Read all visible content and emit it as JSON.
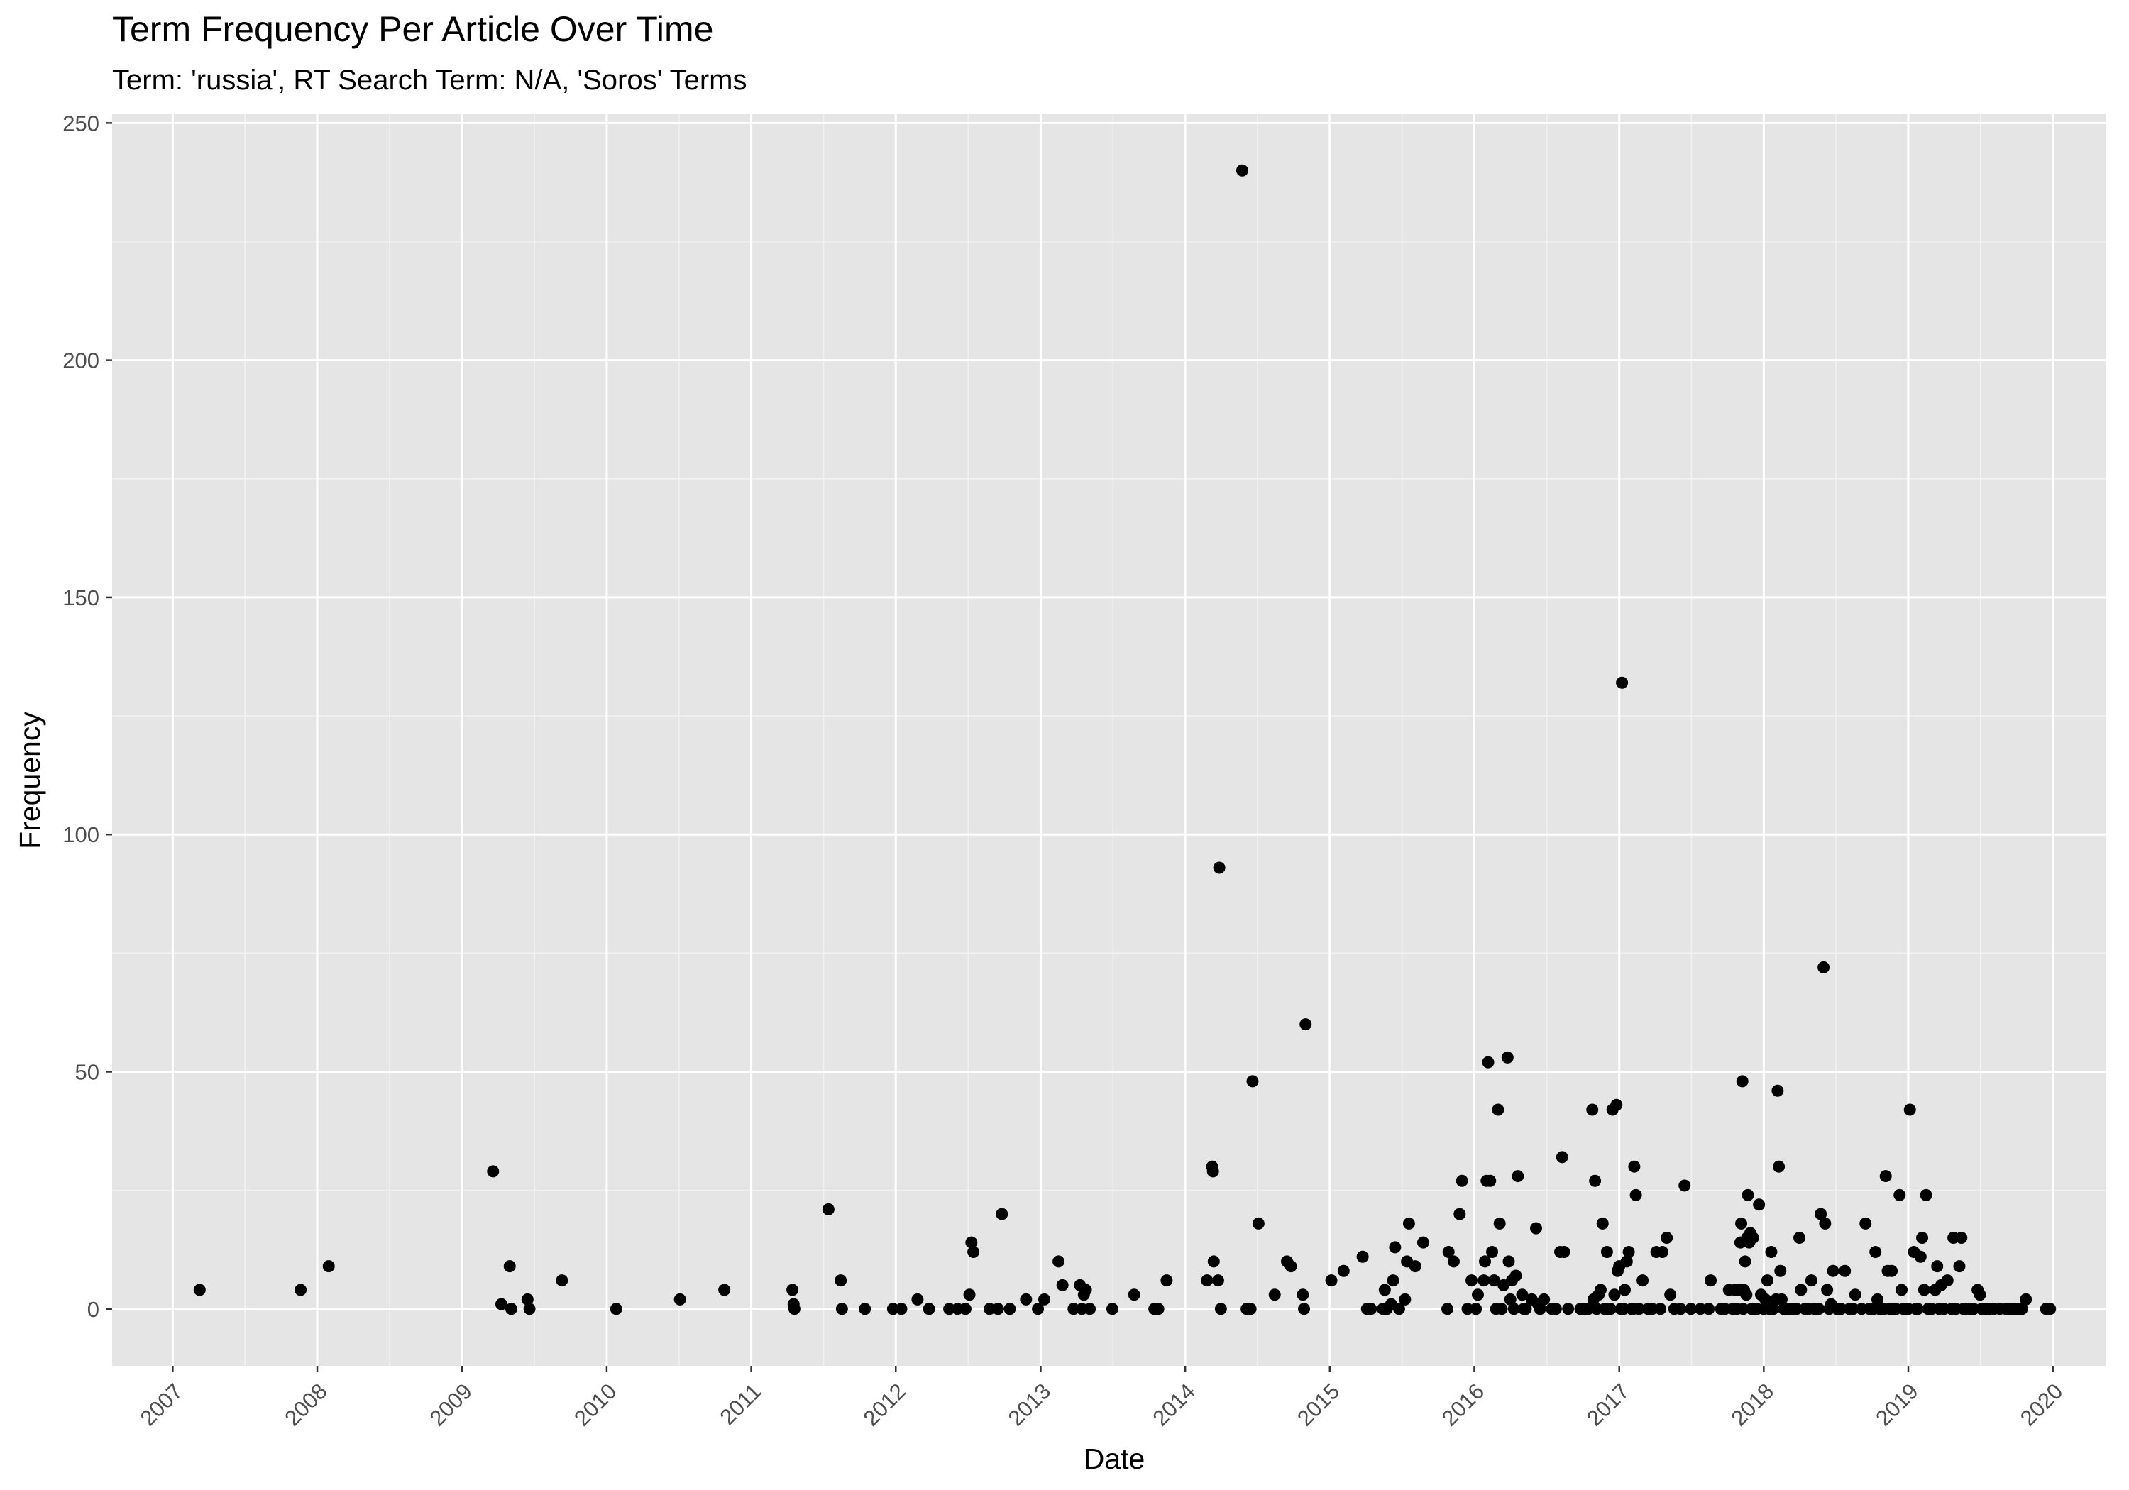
{
  "chart_data": {
    "type": "scatter",
    "title": "Term Frequency Per Article Over Time",
    "subtitle": "Term: 'russia', RT Search Term: N/A, 'Soros' Terms",
    "xlabel": "Date",
    "ylabel": "Frequency",
    "x_is_date": true,
    "xlim": [
      "2006-08-01",
      "2020-05-15"
    ],
    "ylim": [
      -12,
      252
    ],
    "x_ticks": [
      "2007",
      "2008",
      "2009",
      "2010",
      "2011",
      "2012",
      "2013",
      "2014",
      "2015",
      "2016",
      "2017",
      "2018",
      "2019",
      "2020"
    ],
    "y_ticks": [
      0,
      50,
      100,
      150,
      200,
      250
    ],
    "grid": true,
    "legend": "none",
    "colors": {
      "panel": "#e5e5e5",
      "grid_major": "#ffffff",
      "grid_minor": "#f2f2f2",
      "point": "#000000",
      "tick_text": "#4d4d4d"
    },
    "points": [
      [
        "2007-03-10",
        4
      ],
      [
        "2007-11-20",
        4
      ],
      [
        "2008-01-30",
        9
      ],
      [
        "2009-03-20",
        29
      ],
      [
        "2009-04-10",
        1
      ],
      [
        "2009-05-01",
        9
      ],
      [
        "2009-05-05",
        0
      ],
      [
        "2009-06-15",
        2
      ],
      [
        "2009-06-20",
        0
      ],
      [
        "2009-09-10",
        6
      ],
      [
        "2010-01-25",
        0
      ],
      [
        "2010-07-05",
        2
      ],
      [
        "2010-10-25",
        4
      ],
      [
        "2011-04-15",
        4
      ],
      [
        "2011-04-18",
        1
      ],
      [
        "2011-04-20",
        0
      ],
      [
        "2011-07-15",
        21
      ],
      [
        "2011-08-15",
        6
      ],
      [
        "2011-08-18",
        0
      ],
      [
        "2011-10-15",
        0
      ],
      [
        "2011-12-25",
        0
      ],
      [
        "2012-01-15",
        0
      ],
      [
        "2012-02-25",
        2
      ],
      [
        "2012-03-25",
        0
      ],
      [
        "2012-05-15",
        0
      ],
      [
        "2012-06-05",
        0
      ],
      [
        "2012-06-25",
        0
      ],
      [
        "2012-07-05",
        3
      ],
      [
        "2012-07-10",
        14
      ],
      [
        "2012-07-15",
        12
      ],
      [
        "2012-08-25",
        0
      ],
      [
        "2012-09-15",
        0
      ],
      [
        "2012-09-25",
        20
      ],
      [
        "2012-10-15",
        0
      ],
      [
        "2012-11-25",
        2
      ],
      [
        "2012-12-25",
        0
      ],
      [
        "2013-01-10",
        2
      ],
      [
        "2013-02-15",
        10
      ],
      [
        "2013-02-25",
        5
      ],
      [
        "2013-03-25",
        0
      ],
      [
        "2013-04-10",
        5
      ],
      [
        "2013-04-15",
        0
      ],
      [
        "2013-04-20",
        3
      ],
      [
        "2013-04-25",
        4
      ],
      [
        "2013-05-05",
        0
      ],
      [
        "2013-07-01",
        0
      ],
      [
        "2013-08-25",
        3
      ],
      [
        "2013-10-15",
        0
      ],
      [
        "2013-10-25",
        0
      ],
      [
        "2013-11-15",
        6
      ],
      [
        "2014-02-25",
        6
      ],
      [
        "2014-03-10",
        30
      ],
      [
        "2014-03-12",
        29
      ],
      [
        "2014-03-14",
        10
      ],
      [
        "2014-03-25",
        6
      ],
      [
        "2014-03-28",
        93
      ],
      [
        "2014-04-01",
        0
      ],
      [
        "2014-05-25",
        240
      ],
      [
        "2014-06-05",
        0
      ],
      [
        "2014-06-15",
        0
      ],
      [
        "2014-06-20",
        48
      ],
      [
        "2014-07-05",
        18
      ],
      [
        "2014-08-15",
        3
      ],
      [
        "2014-09-15",
        10
      ],
      [
        "2014-09-25",
        9
      ],
      [
        "2014-10-25",
        3
      ],
      [
        "2014-10-28",
        0
      ],
      [
        "2014-11-01",
        60
      ],
      [
        "2015-01-05",
        6
      ],
      [
        "2015-02-05",
        8
      ],
      [
        "2015-03-25",
        11
      ],
      [
        "2015-04-05",
        0
      ],
      [
        "2015-04-15",
        0
      ],
      [
        "2015-05-15",
        0
      ],
      [
        "2015-05-20",
        4
      ],
      [
        "2015-05-25",
        0
      ],
      [
        "2015-06-05",
        1
      ],
      [
        "2015-06-10",
        6
      ],
      [
        "2015-06-15",
        13
      ],
      [
        "2015-06-25",
        0
      ],
      [
        "2015-07-10",
        2
      ],
      [
        "2015-07-15",
        10
      ],
      [
        "2015-07-20",
        18
      ],
      [
        "2015-08-05",
        9
      ],
      [
        "2015-08-25",
        14
      ],
      [
        "2015-10-25",
        0
      ],
      [
        "2015-10-28",
        12
      ],
      [
        "2015-11-10",
        10
      ],
      [
        "2015-11-25",
        20
      ],
      [
        "2015-12-01",
        27
      ],
      [
        "2015-12-15",
        0
      ],
      [
        "2015-12-25",
        6
      ],
      [
        "2016-01-05",
        0
      ],
      [
        "2016-01-10",
        3
      ],
      [
        "2016-01-25",
        6
      ],
      [
        "2016-01-28",
        10
      ],
      [
        "2016-02-01",
        27
      ],
      [
        "2016-02-05",
        52
      ],
      [
        "2016-02-10",
        27
      ],
      [
        "2016-02-15",
        12
      ],
      [
        "2016-02-20",
        6
      ],
      [
        "2016-02-25",
        0
      ],
      [
        "2016-03-01",
        42
      ],
      [
        "2016-03-05",
        18
      ],
      [
        "2016-03-10",
        0
      ],
      [
        "2016-03-15",
        5
      ],
      [
        "2016-03-25",
        53
      ],
      [
        "2016-03-28",
        10
      ],
      [
        "2016-04-01",
        2
      ],
      [
        "2016-04-05",
        6
      ],
      [
        "2016-04-10",
        0
      ],
      [
        "2016-04-15",
        7
      ],
      [
        "2016-04-20",
        28
      ],
      [
        "2016-05-01",
        3
      ],
      [
        "2016-05-05",
        0
      ],
      [
        "2016-05-10",
        0
      ],
      [
        "2016-05-25",
        2
      ],
      [
        "2016-06-05",
        17
      ],
      [
        "2016-06-10",
        1
      ],
      [
        "2016-06-15",
        0
      ],
      [
        "2016-06-25",
        2
      ],
      [
        "2016-07-15",
        0
      ],
      [
        "2016-07-25",
        0
      ],
      [
        "2016-08-05",
        12
      ],
      [
        "2016-08-10",
        32
      ],
      [
        "2016-08-15",
        12
      ],
      [
        "2016-08-25",
        0
      ],
      [
        "2016-09-25",
        0
      ],
      [
        "2016-10-05",
        0
      ],
      [
        "2016-10-15",
        0
      ],
      [
        "2016-10-25",
        42
      ],
      [
        "2016-10-28",
        2
      ],
      [
        "2016-11-01",
        27
      ],
      [
        "2016-11-05",
        0
      ],
      [
        "2016-11-10",
        3
      ],
      [
        "2016-11-15",
        4
      ],
      [
        "2016-11-20",
        18
      ],
      [
        "2016-11-25",
        0
      ],
      [
        "2016-12-01",
        12
      ],
      [
        "2016-12-05",
        0
      ],
      [
        "2016-12-10",
        0
      ],
      [
        "2016-12-15",
        42
      ],
      [
        "2016-12-20",
        3
      ],
      [
        "2016-12-25",
        43
      ],
      [
        "2016-12-28",
        8
      ],
      [
        "2017-01-01",
        9
      ],
      [
        "2017-01-05",
        0
      ],
      [
        "2017-01-08",
        132
      ],
      [
        "2017-01-12",
        0
      ],
      [
        "2017-01-15",
        4
      ],
      [
        "2017-01-20",
        10
      ],
      [
        "2017-01-25",
        12
      ],
      [
        "2017-02-01",
        0
      ],
      [
        "2017-02-05",
        0
      ],
      [
        "2017-02-08",
        30
      ],
      [
        "2017-02-12",
        24
      ],
      [
        "2017-02-20",
        0
      ],
      [
        "2017-03-01",
        6
      ],
      [
        "2017-03-15",
        0
      ],
      [
        "2017-03-25",
        0
      ],
      [
        "2017-04-05",
        12
      ],
      [
        "2017-04-15",
        0
      ],
      [
        "2017-04-20",
        12
      ],
      [
        "2017-05-01",
        15
      ],
      [
        "2017-05-10",
        3
      ],
      [
        "2017-05-20",
        0
      ],
      [
        "2017-06-05",
        0
      ],
      [
        "2017-06-15",
        26
      ],
      [
        "2017-07-01",
        0
      ],
      [
        "2017-07-25",
        0
      ],
      [
        "2017-08-15",
        0
      ],
      [
        "2017-08-20",
        6
      ],
      [
        "2017-09-15",
        0
      ],
      [
        "2017-09-25",
        0
      ],
      [
        "2017-10-05",
        4
      ],
      [
        "2017-10-15",
        0
      ],
      [
        "2017-10-20",
        4
      ],
      [
        "2017-10-25",
        0
      ],
      [
        "2017-11-01",
        4
      ],
      [
        "2017-11-03",
        14
      ],
      [
        "2017-11-05",
        18
      ],
      [
        "2017-11-08",
        48
      ],
      [
        "2017-11-10",
        0
      ],
      [
        "2017-11-12",
        4
      ],
      [
        "2017-11-15",
        10
      ],
      [
        "2017-11-18",
        3
      ],
      [
        "2017-11-20",
        15
      ],
      [
        "2017-11-22",
        24
      ],
      [
        "2017-11-25",
        14
      ],
      [
        "2017-11-28",
        16
      ],
      [
        "2017-12-01",
        0
      ],
      [
        "2017-12-05",
        15
      ],
      [
        "2017-12-10",
        0
      ],
      [
        "2017-12-15",
        0
      ],
      [
        "2017-12-20",
        22
      ],
      [
        "2017-12-25",
        3
      ],
      [
        "2018-01-01",
        0
      ],
      [
        "2018-01-05",
        2
      ],
      [
        "2018-01-10",
        6
      ],
      [
        "2018-01-15",
        0
      ],
      [
        "2018-01-20",
        12
      ],
      [
        "2018-01-25",
        0
      ],
      [
        "2018-02-01",
        2
      ],
      [
        "2018-02-05",
        46
      ],
      [
        "2018-02-08",
        30
      ],
      [
        "2018-02-12",
        8
      ],
      [
        "2018-02-15",
        2
      ],
      [
        "2018-02-20",
        0
      ],
      [
        "2018-02-25",
        0
      ],
      [
        "2018-03-05",
        0
      ],
      [
        "2018-03-15",
        0
      ],
      [
        "2018-03-25",
        0
      ],
      [
        "2018-04-01",
        15
      ],
      [
        "2018-04-05",
        4
      ],
      [
        "2018-04-15",
        0
      ],
      [
        "2018-04-25",
        0
      ],
      [
        "2018-05-01",
        6
      ],
      [
        "2018-05-10",
        0
      ],
      [
        "2018-05-20",
        0
      ],
      [
        "2018-05-25",
        20
      ],
      [
        "2018-06-01",
        72
      ],
      [
        "2018-06-05",
        18
      ],
      [
        "2018-06-10",
        4
      ],
      [
        "2018-06-15",
        0
      ],
      [
        "2018-06-20",
        1
      ],
      [
        "2018-06-25",
        8
      ],
      [
        "2018-07-05",
        0
      ],
      [
        "2018-07-15",
        0
      ],
      [
        "2018-07-25",
        8
      ],
      [
        "2018-08-05",
        0
      ],
      [
        "2018-08-15",
        0
      ],
      [
        "2018-08-20",
        3
      ],
      [
        "2018-09-05",
        0
      ],
      [
        "2018-09-15",
        18
      ],
      [
        "2018-09-25",
        0
      ],
      [
        "2018-10-05",
        0
      ],
      [
        "2018-10-10",
        12
      ],
      [
        "2018-10-15",
        2
      ],
      [
        "2018-10-20",
        0
      ],
      [
        "2018-10-25",
        0
      ],
      [
        "2018-11-01",
        0
      ],
      [
        "2018-11-05",
        28
      ],
      [
        "2018-11-10",
        8
      ],
      [
        "2018-11-15",
        0
      ],
      [
        "2018-11-20",
        8
      ],
      [
        "2018-11-25",
        0
      ],
      [
        "2018-12-01",
        0
      ],
      [
        "2018-12-10",
        24
      ],
      [
        "2018-12-15",
        4
      ],
      [
        "2018-12-20",
        0
      ],
      [
        "2018-12-25",
        0
      ],
      [
        "2019-01-01",
        0
      ],
      [
        "2019-01-05",
        42
      ],
      [
        "2019-01-15",
        12
      ],
      [
        "2019-01-20",
        0
      ],
      [
        "2019-01-25",
        0
      ],
      [
        "2019-02-01",
        11
      ],
      [
        "2019-02-05",
        15
      ],
      [
        "2019-02-10",
        4
      ],
      [
        "2019-02-15",
        24
      ],
      [
        "2019-02-20",
        0
      ],
      [
        "2019-02-25",
        0
      ],
      [
        "2019-03-01",
        0
      ],
      [
        "2019-03-10",
        4
      ],
      [
        "2019-03-15",
        9
      ],
      [
        "2019-03-20",
        0
      ],
      [
        "2019-03-25",
        5
      ],
      [
        "2019-04-01",
        0
      ],
      [
        "2019-04-10",
        6
      ],
      [
        "2019-04-20",
        0
      ],
      [
        "2019-04-25",
        15
      ],
      [
        "2019-05-01",
        0
      ],
      [
        "2019-05-10",
        9
      ],
      [
        "2019-05-15",
        15
      ],
      [
        "2019-05-20",
        0
      ],
      [
        "2019-05-25",
        0
      ],
      [
        "2019-06-05",
        0
      ],
      [
        "2019-06-15",
        0
      ],
      [
        "2019-06-25",
        4
      ],
      [
        "2019-07-01",
        3
      ],
      [
        "2019-07-05",
        0
      ],
      [
        "2019-07-15",
        0
      ],
      [
        "2019-07-25",
        0
      ],
      [
        "2019-08-05",
        0
      ],
      [
        "2019-08-20",
        0
      ],
      [
        "2019-09-05",
        0
      ],
      [
        "2019-09-15",
        0
      ],
      [
        "2019-09-25",
        0
      ],
      [
        "2019-10-05",
        0
      ],
      [
        "2019-10-15",
        0
      ],
      [
        "2019-10-25",
        2
      ],
      [
        "2019-12-15",
        0
      ],
      [
        "2019-12-25",
        0
      ]
    ]
  }
}
